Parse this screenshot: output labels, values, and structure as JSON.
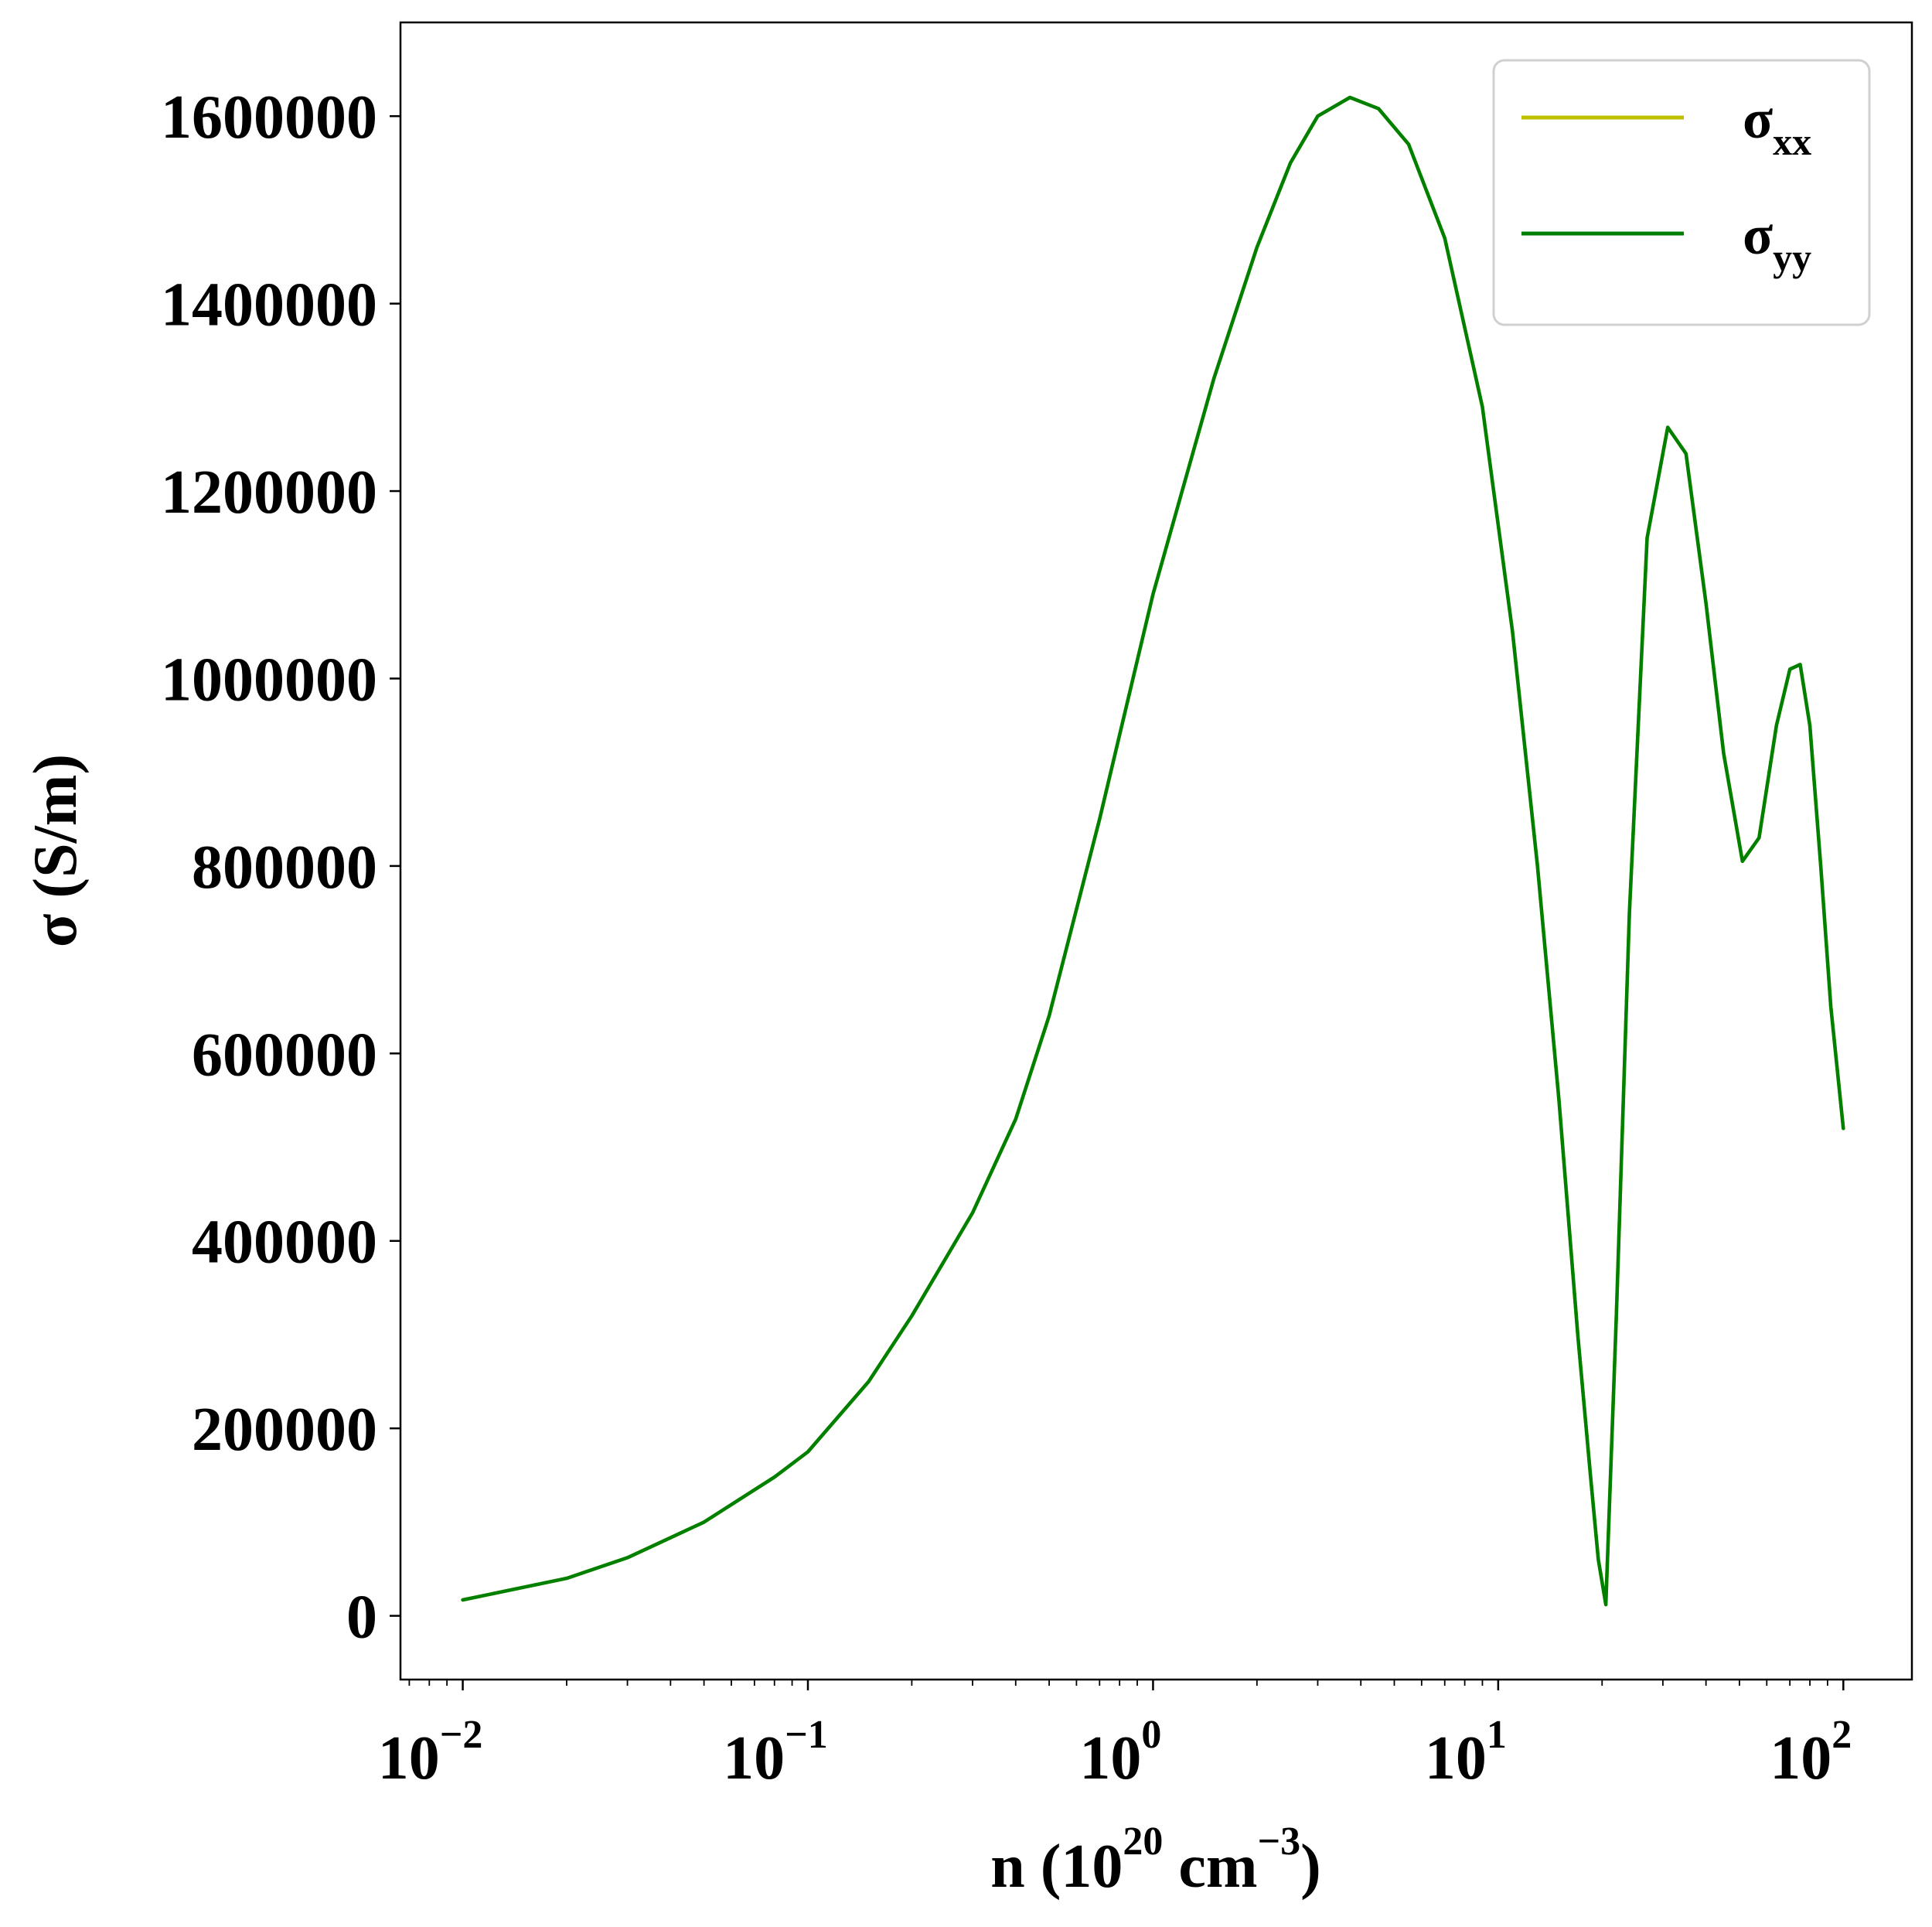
{
  "chart_data": {
    "type": "line",
    "title": "",
    "xlabel": {
      "base": "n (10",
      "exp": "20",
      "mid": " cm",
      "exp2": "−3",
      "end": ")"
    },
    "ylabel": "σ (S/m)",
    "xscale": "log",
    "xlim": [
      0.0066,
      158
    ],
    "ylim": [
      -68000,
      1700000
    ],
    "x_ticks": [
      {
        "value": 0.01,
        "base": "10",
        "exp": "−2"
      },
      {
        "value": 0.1,
        "base": "10",
        "exp": "−1"
      },
      {
        "value": 1,
        "base": "10",
        "exp": "0"
      },
      {
        "value": 10,
        "base": "10",
        "exp": "1"
      },
      {
        "value": 100,
        "base": "10",
        "exp": "2"
      }
    ],
    "y_ticks": [
      0,
      200000,
      400000,
      600000,
      800000,
      1000000,
      1200000,
      1400000,
      1600000
    ],
    "y_tick_labels": [
      "0",
      "200000",
      "400000",
      "600000",
      "800000",
      "1000000",
      "1200000",
      "1400000",
      "1600000"
    ],
    "grid": false,
    "legend_position": "top-right",
    "series": [
      {
        "name": "σxx",
        "label_base": "σ",
        "label_sub": "xx",
        "color": "#bfbf00",
        "x": [
          0.01,
          0.02,
          0.03,
          0.05,
          0.08,
          0.1,
          0.15,
          0.2,
          0.3,
          0.4,
          0.5,
          0.7,
          1.0,
          1.5,
          2.0,
          2.5,
          3.0,
          3.72,
          4.5,
          5.5,
          7.0,
          9.0,
          11.0,
          13.0,
          15.0,
          17.0,
          18.5,
          19.5,
          20.5,
          22.0,
          24.0,
          27.0,
          31.0,
          35.0,
          40.0,
          45.0,
          51.0,
          57.0,
          64.0,
          70.0,
          75.0,
          80.0,
          86.0,
          92.0,
          100.0
        ],
        "y": [
          17000,
          40000,
          62000,
          100000,
          148000,
          175000,
          250000,
          320000,
          430000,
          530000,
          640000,
          850000,
          1090000,
          1320000,
          1460000,
          1550000,
          1600000,
          1620000,
          1608000,
          1570000,
          1470000,
          1290000,
          1050000,
          800000,
          550000,
          300000,
          150000,
          60000,
          12000,
          320000,
          750000,
          1150000,
          1268000,
          1240000,
          1080000,
          920000,
          805000,
          830000,
          950000,
          1010000,
          1015000,
          950000,
          800000,
          650000,
          520000
        ]
      },
      {
        "name": "σyy",
        "label_base": "σ",
        "label_sub": "yy",
        "color": "#008000",
        "x": [
          0.01,
          0.02,
          0.03,
          0.05,
          0.08,
          0.1,
          0.15,
          0.2,
          0.3,
          0.4,
          0.5,
          0.7,
          1.0,
          1.5,
          2.0,
          2.5,
          3.0,
          3.72,
          4.5,
          5.5,
          7.0,
          9.0,
          11.0,
          13.0,
          15.0,
          17.0,
          18.5,
          19.5,
          20.5,
          22.0,
          24.0,
          27.0,
          31.0,
          35.0,
          40.0,
          45.0,
          51.0,
          57.0,
          64.0,
          70.0,
          75.0,
          80.0,
          86.0,
          92.0,
          100.0
        ],
        "y": [
          17000,
          40000,
          62000,
          100000,
          148000,
          175000,
          250000,
          320000,
          430000,
          530000,
          640000,
          850000,
          1090000,
          1320000,
          1460000,
          1550000,
          1600000,
          1620000,
          1608000,
          1570000,
          1470000,
          1290000,
          1050000,
          800000,
          550000,
          300000,
          150000,
          60000,
          12000,
          320000,
          750000,
          1150000,
          1268000,
          1240000,
          1080000,
          920000,
          805000,
          830000,
          950000,
          1010000,
          1015000,
          950000,
          800000,
          650000,
          520000
        ]
      }
    ]
  }
}
